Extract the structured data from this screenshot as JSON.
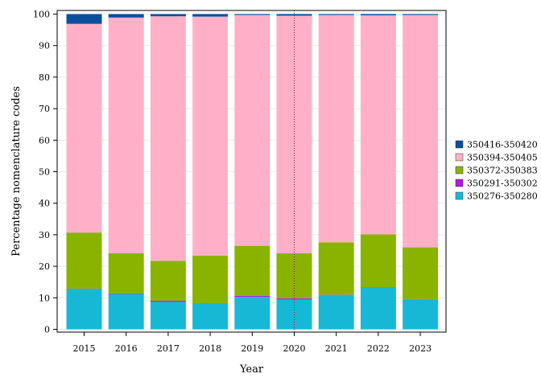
{
  "chart_data": {
    "type": "bar",
    "stacked": true,
    "xlabel": "Year",
    "ylabel": "Percentage nomenclature codes",
    "ylim": [
      0,
      100
    ],
    "yticks": [
      0,
      10,
      20,
      30,
      40,
      50,
      60,
      70,
      80,
      90,
      100
    ],
    "categories": [
      "2015",
      "2016",
      "2017",
      "2018",
      "2019",
      "2020",
      "2021",
      "2022",
      "2023"
    ],
    "series": [
      {
        "name": "350276-350280",
        "color": "#17b8d6",
        "values": [
          12.8,
          11.2,
          8.7,
          8.2,
          10.3,
          9.4,
          10.9,
          13.3,
          9.5
        ]
      },
      {
        "name": "350291-350302",
        "color": "#b218e8",
        "values": [
          0.1,
          0.2,
          0.4,
          0.1,
          0.3,
          0.4,
          0.1,
          0.1,
          0.1
        ]
      },
      {
        "name": "350372-350383",
        "color": "#8ab300",
        "values": [
          17.8,
          12.7,
          12.6,
          15.1,
          15.9,
          14.3,
          16.6,
          16.7,
          16.4
        ]
      },
      {
        "name": "350394-350405",
        "color": "#ffb0c8",
        "values": [
          66.2,
          74.8,
          77.6,
          75.8,
          73.2,
          75.4,
          72.1,
          69.5,
          73.7
        ]
      },
      {
        "name": "350416-350420",
        "color": "#0a4f9e",
        "values": [
          3.1,
          1.1,
          0.7,
          0.8,
          0.3,
          0.5,
          0.3,
          0.4,
          0.3
        ]
      }
    ],
    "legend_order": [
      "350416-350420",
      "350394-350405",
      "350372-350383",
      "350291-350302",
      "350276-350280"
    ],
    "legend_position": "right",
    "reference_line": {
      "x": "2020",
      "style": "dotted",
      "color": "#8b1a3a"
    },
    "grid": true
  }
}
